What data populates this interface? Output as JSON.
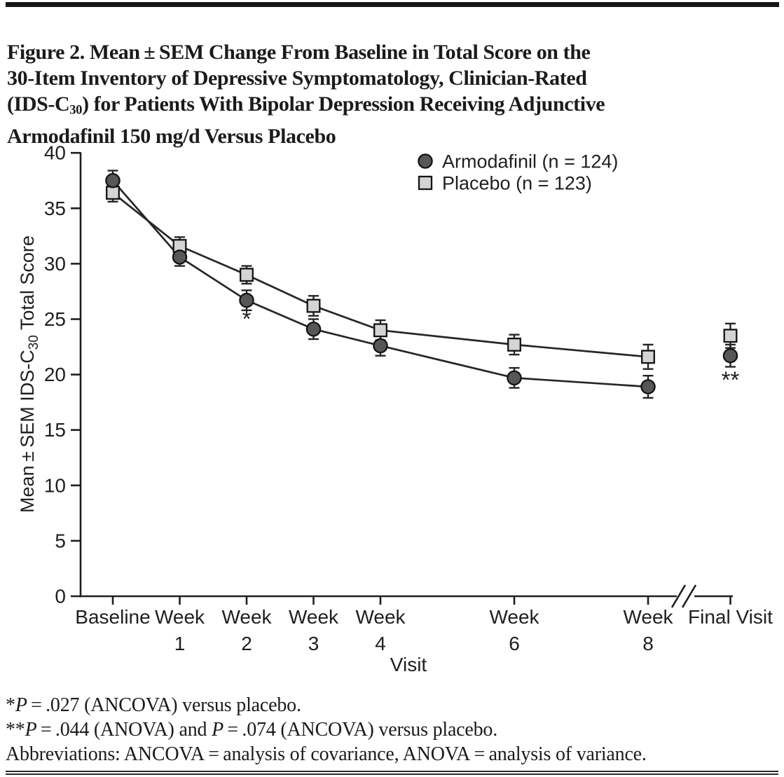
{
  "title": {
    "line1": "Figure 2. Mean ± SEM Change From Baseline in Total Score on the",
    "line2": "30-Item Inventory of Depressive Symptomatology, Clinician-Rated",
    "line3_pre": "(IDS-C",
    "line3_sub": "30",
    "line3_post": ") for Patients With Bipolar Depression Receiving Adjunctive",
    "line4": "Armodafinil 150 mg/d Versus Placebo"
  },
  "footnotes": {
    "fn1_star": "*",
    "fn1_p": "P",
    "fn1_rest": " = .027 (ANCOVA) versus placebo.",
    "fn2_star": "**",
    "fn2_p1": "P",
    "fn2_mid": " = .044 (ANOVA) and ",
    "fn2_p2": "P",
    "fn2_rest": " = .074 (ANCOVA) versus placebo.",
    "fn3": "Abbreviations: ANCOVA = analysis of covariance, ANOVA = analysis of variance."
  },
  "colors": {
    "ink": "#1f1f1f",
    "line": "#262626",
    "armodafinil_fill": "#575757",
    "placebo_fill": "#d4d4d4",
    "marker_stroke": "#141414"
  },
  "chart_data": {
    "type": "line",
    "title": "Figure 2. Mean ± SEM Change From Baseline in Total Score on the 30-Item Inventory of Depressive Symptomatology, Clinician-Rated (IDS-C30) for Patients With Bipolar Depression Receiving Adjunctive Armodafinil 150 mg/d Versus Placebo",
    "categories": [
      "Baseline",
      "Week 1",
      "Week 2",
      "Week 3",
      "Week 4",
      "Week 6",
      "Week 8",
      "Final Visit"
    ],
    "x_tick_top": [
      "Baseline",
      "Week",
      "Week",
      "Week",
      "Week",
      "Week",
      "Week",
      "Final Visit"
    ],
    "x_tick_bottom": [
      "",
      "1",
      "2",
      "3",
      "4",
      "6",
      "8",
      ""
    ],
    "x_units": [
      0,
      1,
      2,
      3,
      4,
      6,
      8,
      9.23
    ],
    "xlabel": "Visit",
    "ylabel_parts": {
      "pre": "Mean ± SEM IDS-C",
      "sub": "30",
      "post": " Total Score"
    },
    "ylim": [
      0,
      40
    ],
    "ytick_step": 5,
    "grid": false,
    "legend_position": "top-right-inside",
    "axis_break_between": [
      "Week 8",
      "Final Visit"
    ],
    "connect_until": 6,
    "series": [
      {
        "name": "Armodafinil (n = 124)",
        "marker": "circle",
        "color": "#575757",
        "values": [
          37.5,
          30.6,
          26.7,
          24.1,
          22.6,
          19.7,
          18.9,
          21.7
        ],
        "sem": [
          0.9,
          0.8,
          0.9,
          0.9,
          0.9,
          0.9,
          1.0,
          1.0
        ]
      },
      {
        "name": "Placebo (n = 123)",
        "marker": "square",
        "color": "#d4d4d4",
        "values": [
          36.4,
          31.6,
          29.0,
          26.2,
          24.0,
          22.7,
          21.6,
          23.5
        ],
        "sem": [
          0.8,
          0.8,
          0.8,
          0.9,
          0.9,
          0.9,
          1.1,
          1.1
        ]
      }
    ],
    "annotations": [
      {
        "text": "*",
        "x_index": 2,
        "value": 24.3
      },
      {
        "text": "**",
        "x_index": 7,
        "value": 18.8
      }
    ]
  }
}
